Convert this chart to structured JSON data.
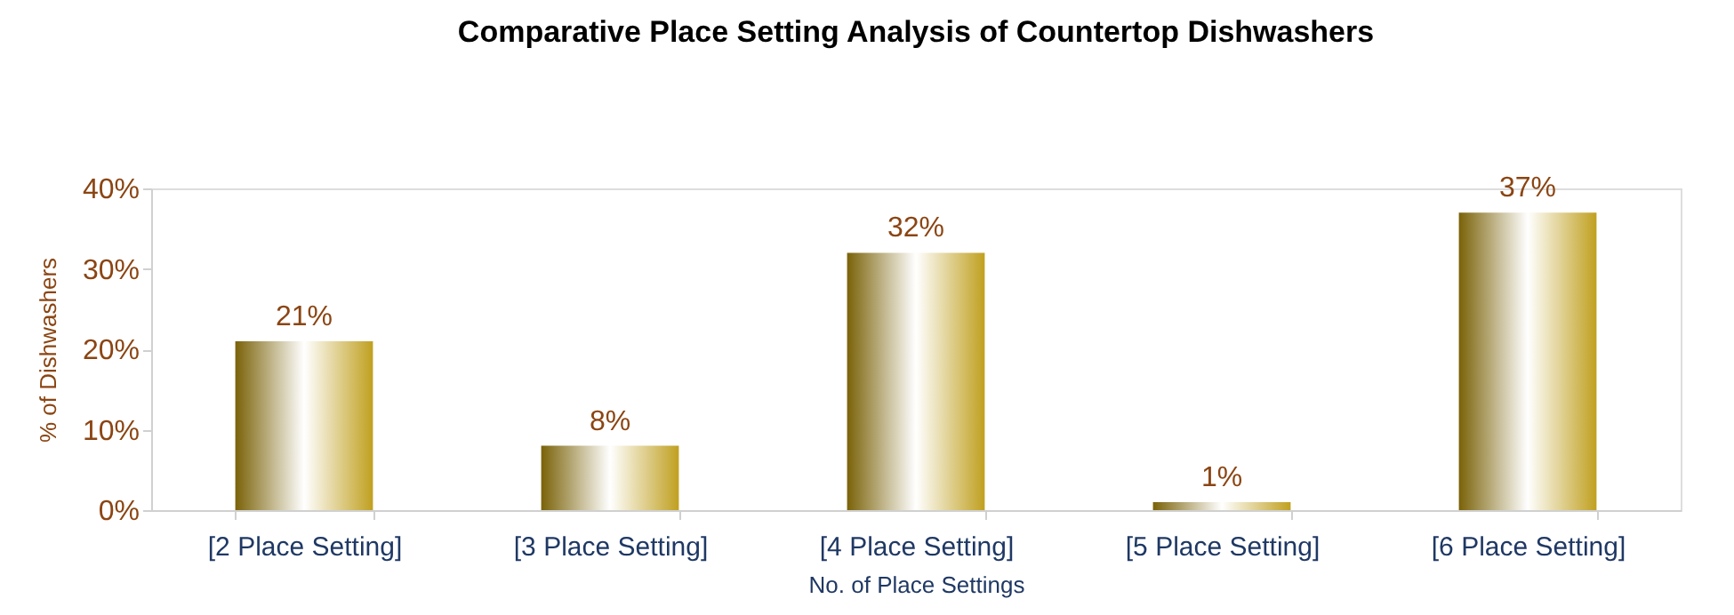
{
  "chart_data": {
    "type": "bar",
    "title": "Comparative  Place Setting Analysis of Countertop  Dishwashers",
    "xlabel": "No. of Place Settings",
    "ylabel": "% of Dishwashers",
    "categories": [
      "[2 Place Setting]",
      "[3 Place Setting]",
      "[4 Place Setting]",
      "[5 Place Setting]",
      "[6 Place Setting]"
    ],
    "values": [
      21,
      8,
      32,
      1,
      37
    ],
    "value_labels": [
      "21%",
      "8%",
      "32%",
      "1%",
      "37%"
    ],
    "color": "#c0a020",
    "ylim": [
      0,
      40
    ],
    "yticks": [
      {
        "value": 0,
        "label": "0%"
      },
      {
        "value": 10,
        "label": "10%"
      },
      {
        "value": 20,
        "label": "20%"
      },
      {
        "value": 30,
        "label": "30%"
      },
      {
        "value": 40,
        "label": "40%"
      }
    ],
    "grid": false
  }
}
